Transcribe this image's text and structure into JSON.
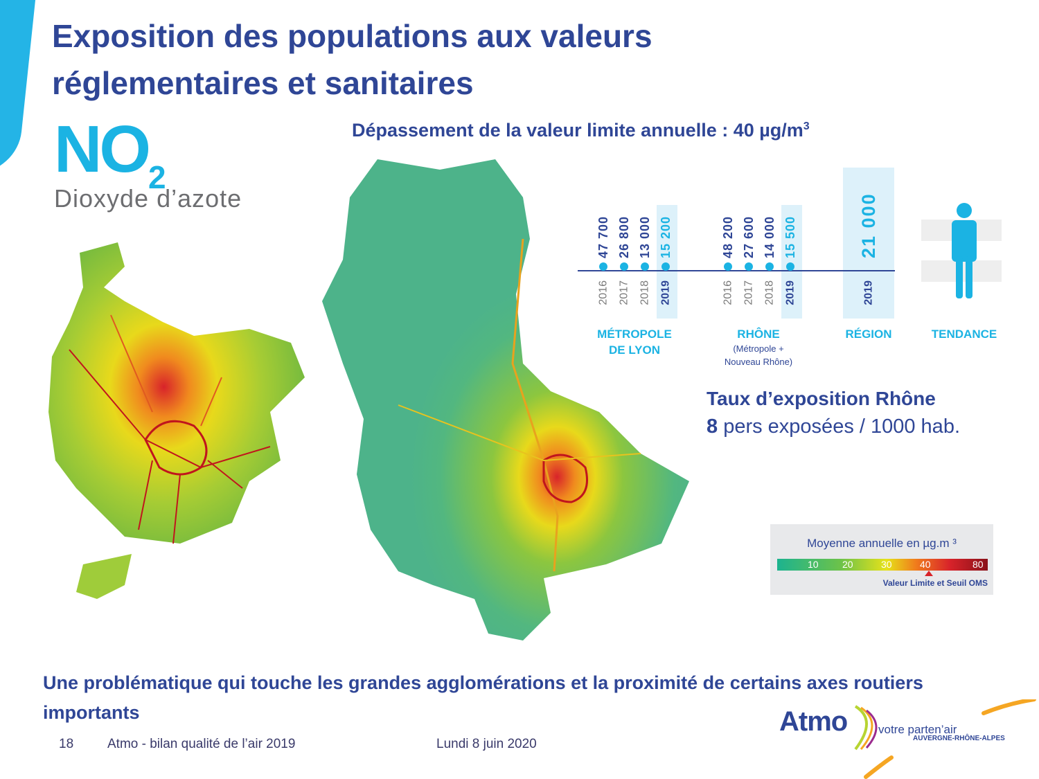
{
  "slide": {
    "title_line1": "Exposition des populations aux valeurs",
    "title_line2": "réglementaires et sanitaires",
    "pollutant_formula": "NO",
    "pollutant_subscript": "2",
    "pollutant_name": "Dioxyde d’azote",
    "chart_heading": "Dépassement de la valeur limite annuelle : 40 µg/m",
    "chart_heading_sup": "3",
    "exposure_title": "Taux d’exposition Rhône",
    "exposure_value": "8",
    "exposure_unit": "pers exposées / 1000 hab.",
    "conclusion": "Une problématique qui touche les grandes agglomérations et la proximité de certains axes routiers importants"
  },
  "legend": {
    "title": "Moyenne annuelle en µg.m ³",
    "ticks": [
      "10",
      "20",
      "30",
      "40",
      "80"
    ],
    "note": "Valeur Limite et Seuil OMS"
  },
  "footer": {
    "page": "18",
    "doc": "Atmo - bilan qualité de l’air 2019",
    "date": "Lundi 8 juin 2020"
  },
  "logo": {
    "name": "Atmo",
    "tagline": "votre parten’air",
    "region": "AUVERGNE-RHÔNE-ALPES"
  },
  "colors": {
    "title_blue": "#2f4696",
    "accent_cyan": "#1bb3e3",
    "highlight_bg": "#ddf1fa",
    "year_gray": "#7a7a7a"
  },
  "chart_data": {
    "type": "table",
    "groups": [
      {
        "label_lines": [
          "MÉTROPOLE",
          "DE LYON"
        ],
        "note_lines": [],
        "years": [
          "2016",
          "2017",
          "2018",
          "2019"
        ],
        "labels": [
          "47 700",
          "26 800",
          "13 000",
          "15 200"
        ],
        "values": [
          47700,
          26800,
          13000,
          15200
        ]
      },
      {
        "label_lines": [
          "RHÔNE"
        ],
        "note_lines": [
          "(Métropole +",
          "Nouveau Rhône)"
        ],
        "years": [
          "2016",
          "2017",
          "2018",
          "2019"
        ],
        "labels": [
          "48 200",
          "27 600",
          "14 000",
          "15 500"
        ],
        "values": [
          48200,
          27600,
          14000,
          15500
        ]
      },
      {
        "label_lines": [
          "RÉGION"
        ],
        "note_lines": [],
        "years": [
          "2019"
        ],
        "labels": [
          "21 000"
        ],
        "values": [
          21000
        ]
      }
    ],
    "trend_label": "TENDANCE",
    "trend_icon": "person-icon"
  }
}
